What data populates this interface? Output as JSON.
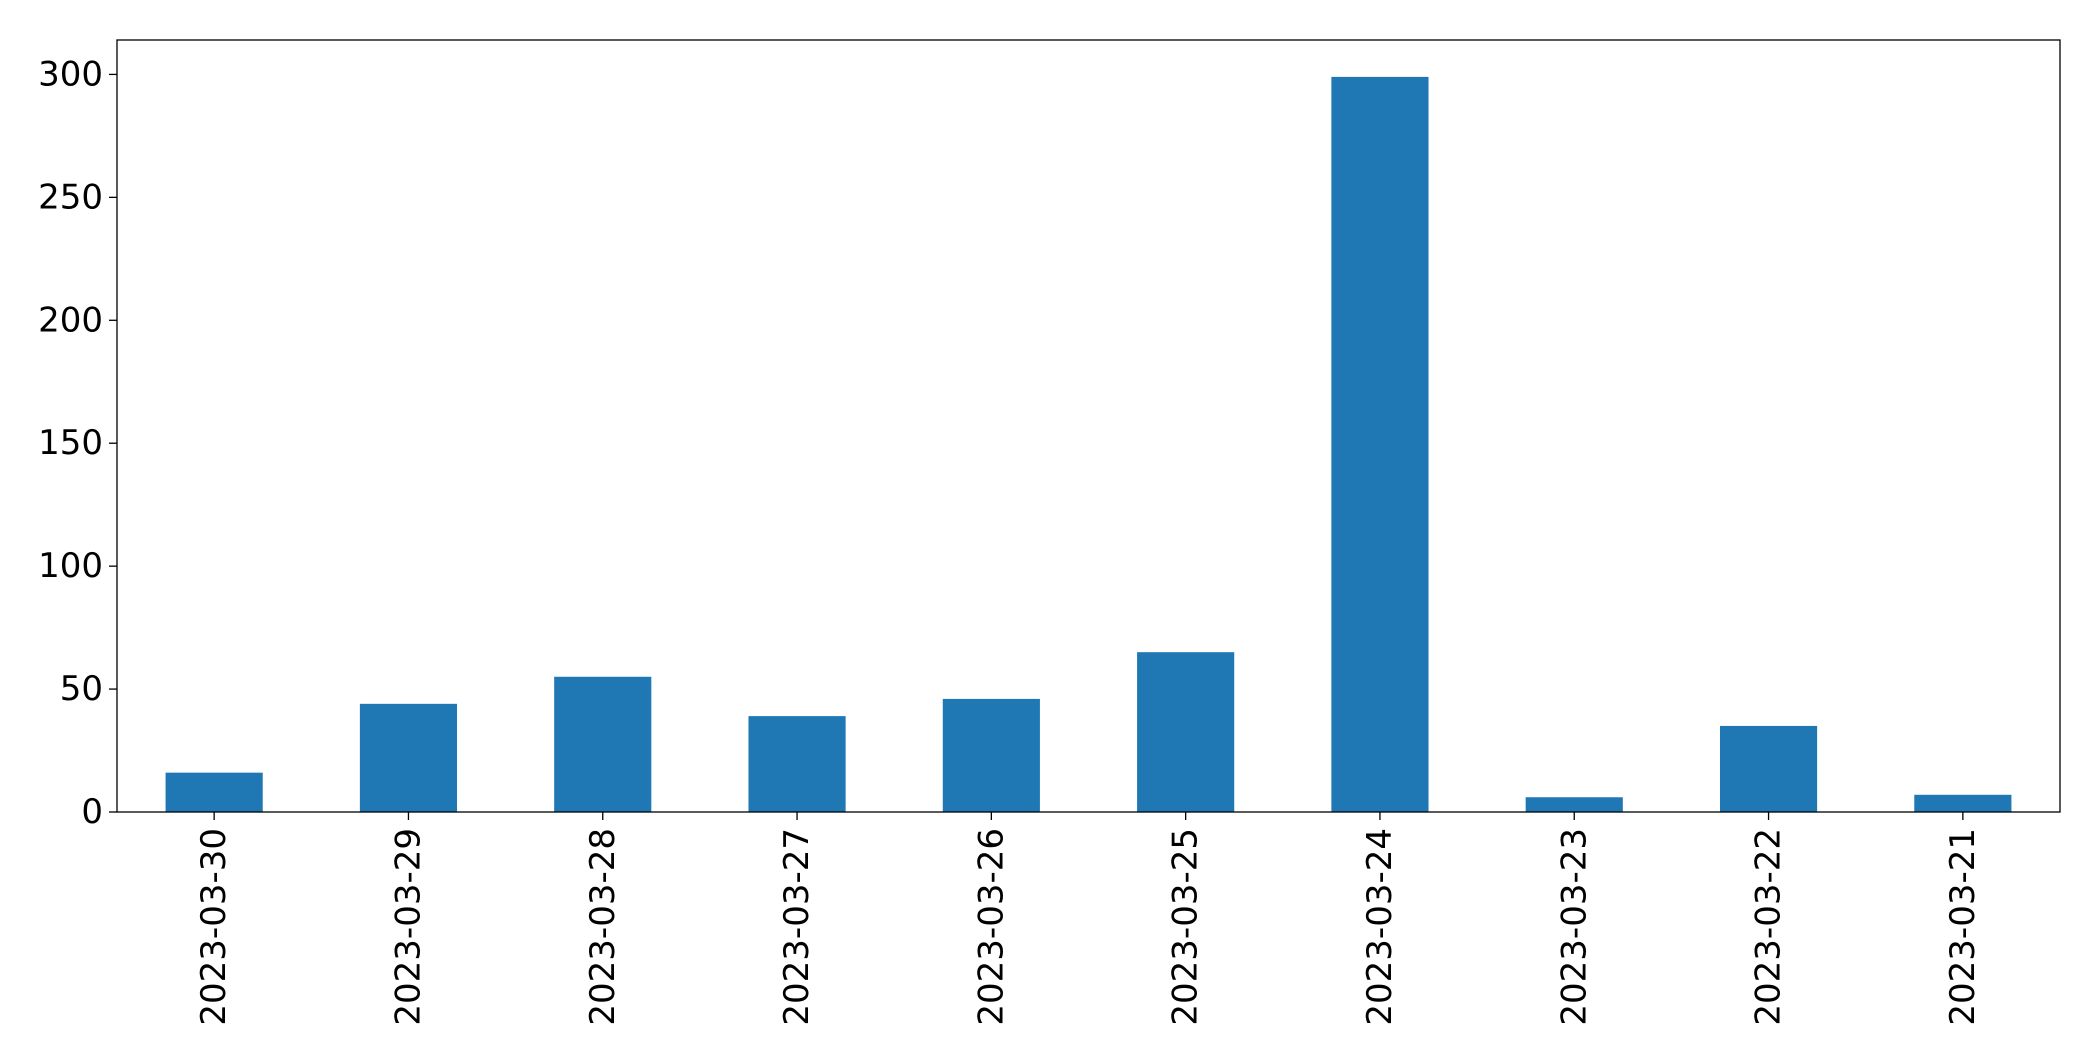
{
  "chart_data": {
    "type": "bar",
    "title": "",
    "xlabel": "",
    "ylabel": "",
    "categories": [
      "2023-03-30",
      "2023-03-29",
      "2023-03-28",
      "2023-03-27",
      "2023-03-26",
      "2023-03-25",
      "2023-03-24",
      "2023-03-23",
      "2023-03-22",
      "2023-03-21"
    ],
    "values": [
      16,
      44,
      55,
      39,
      46,
      65,
      299,
      6,
      35,
      7
    ],
    "ylim": [
      0,
      314
    ],
    "yticks": [
      0,
      50,
      100,
      150,
      200,
      250,
      300
    ],
    "yticklabels": [
      "0",
      "50",
      "100",
      "150",
      "200",
      "250",
      "300"
    ],
    "bar_color": "#1f77b4",
    "grid": false,
    "legend": "none"
  }
}
